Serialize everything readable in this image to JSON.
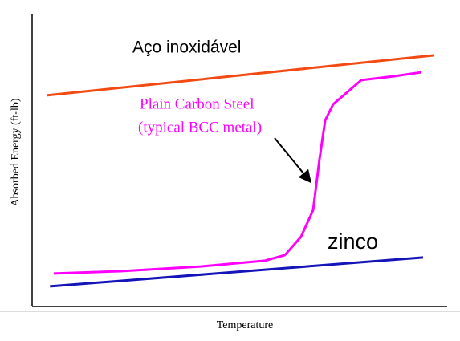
{
  "chart_data": {
    "type": "line",
    "xlabel": "Temperature",
    "ylabel": "Absorbed Energy (ft-lb)",
    "xlim": [
      0,
      100
    ],
    "ylim": [
      0,
      100
    ],
    "series": [
      {
        "name": "Aço inoxidável",
        "color": "#f24a12",
        "x": [
          3.5,
          96.7
        ],
        "values": [
          72.3,
          86.0
        ]
      },
      {
        "name": "Plain Carbon Steel",
        "color": "#ff00ff",
        "x": [
          5.2,
          21.3,
          40.6,
          56.1,
          60.9,
          64.8,
          67.7,
          69.2,
          70.6,
          72.5,
          79.3,
          87.0,
          93.8
        ],
        "values": [
          11.3,
          12.1,
          13.7,
          15.7,
          17.6,
          23.9,
          33.0,
          50.0,
          63.7,
          69.2,
          77.5,
          78.8,
          80.2
        ]
      },
      {
        "name": "zinco",
        "color": "#1414b8",
        "x": [
          4.3,
          94.2
        ],
        "values": [
          6.9,
          16.8
        ]
      }
    ],
    "annotations": [
      "(typical BCC metal)"
    ]
  }
}
